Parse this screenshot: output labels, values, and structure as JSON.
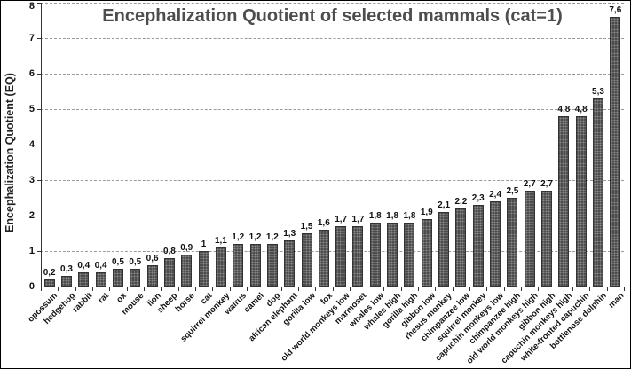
{
  "chart_data": {
    "type": "bar",
    "title": "Encephalization Quotient of selected mammals (cat=1)",
    "ylabel": "Encephalization Quotient (EQ)",
    "xlabel": "",
    "ylim": [
      0,
      8
    ],
    "yticks": [
      0,
      1,
      2,
      3,
      4,
      5,
      6,
      7,
      8
    ],
    "grid": "horizontal-dashed",
    "legend_position": "none",
    "decimal_separator": ",",
    "categories": [
      "opossum",
      "hedgehog",
      "rabbit",
      "rat",
      "ox",
      "mouse",
      "lion",
      "sheep",
      "horse",
      "cat",
      "squirrel monkey",
      "walrus",
      "camel",
      "dog",
      "african elephant",
      "gorilla low",
      "fox",
      "old world monkeys low",
      "marmoset",
      "whales low",
      "whales high",
      "gorilla high",
      "gibbon low",
      "rhesus monkey",
      "chimpanzee low",
      "squirrel monkey",
      "capuchin monkeys low",
      "chimpanzee high",
      "old world monkeys high",
      "gibbon high",
      "capuchin monkeys high",
      "white-fronted capuchin",
      "bottlenose dolphin",
      "man"
    ],
    "values": [
      0.2,
      0.3,
      0.4,
      0.4,
      0.5,
      0.5,
      0.6,
      0.8,
      0.9,
      1,
      1.1,
      1.2,
      1.2,
      1.2,
      1.3,
      1.5,
      1.6,
      1.7,
      1.7,
      1.8,
      1.8,
      1.8,
      1.9,
      2.1,
      2.2,
      2.3,
      2.4,
      2.5,
      2.7,
      2.7,
      4.8,
      4.8,
      5.3,
      7.6
    ],
    "value_labels": [
      "0,2",
      "0,3",
      "0,4",
      "0,4",
      "0,5",
      "0,5",
      "0,6",
      "0,8",
      "0,9",
      "1",
      "1,1",
      "1,2",
      "1,2",
      "1,2",
      "1,3",
      "1,5",
      "1,6",
      "1,7",
      "1,7",
      "1,8",
      "1,8",
      "1,8",
      "1,9",
      "2,1",
      "2,2",
      "2,3",
      "2,4",
      "2,5",
      "2,7",
      "2,7",
      "4,8",
      "4,8",
      "5,3",
      "7,6"
    ]
  },
  "colors": {
    "bar_fill": "#4c4c4c",
    "bar_border": "#333333",
    "title_text": "#4d4d4d",
    "axis_text": "#111111",
    "gridline": "#999999",
    "axis_line": "#333333",
    "background": "#ffffff",
    "frame_border": "#000000"
  }
}
